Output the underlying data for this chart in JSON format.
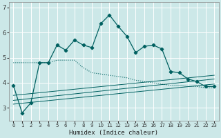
{
  "xlabel": "Humidex (Indice chaleur)",
  "bg_color": "#cce8e8",
  "grid_color": "#ffffff",
  "line_color": "#006060",
  "xlim": [
    -0.5,
    23.5
  ],
  "ylim": [
    2.5,
    7.2
  ],
  "yticks": [
    3,
    4,
    5,
    6,
    7
  ],
  "xticks": [
    0,
    1,
    2,
    3,
    4,
    5,
    6,
    7,
    8,
    9,
    10,
    11,
    12,
    13,
    14,
    15,
    16,
    17,
    18,
    19,
    20,
    21,
    22,
    23
  ],
  "main_x": [
    0,
    1,
    2,
    3,
    4,
    5,
    6,
    7,
    8,
    9,
    10,
    11,
    12,
    13,
    14,
    15,
    16,
    17,
    18,
    19,
    20,
    21,
    22,
    23
  ],
  "main_y": [
    3.9,
    2.8,
    3.2,
    4.8,
    4.8,
    5.5,
    5.3,
    5.7,
    5.5,
    5.4,
    6.35,
    6.7,
    6.25,
    5.85,
    5.2,
    5.45,
    5.5,
    5.35,
    4.45,
    4.4,
    4.15,
    4.05,
    3.85,
    3.85
  ],
  "smooth_x": [
    0,
    1,
    2,
    3,
    4,
    5,
    6,
    7,
    8,
    9,
    10,
    11,
    12,
    13,
    14,
    15,
    16,
    17,
    18,
    19,
    20,
    21,
    22,
    23
  ],
  "smooth_y": [
    4.8,
    4.8,
    4.8,
    4.8,
    4.8,
    4.9,
    4.9,
    4.9,
    4.6,
    4.4,
    4.35,
    4.3,
    4.25,
    4.2,
    4.1,
    4.05,
    4.0,
    3.95,
    3.9,
    3.9,
    3.85,
    3.85,
    3.8,
    3.8
  ],
  "line2_x": [
    0,
    23
  ],
  "line2_y": [
    3.5,
    4.3
  ],
  "line3_x": [
    0,
    23
  ],
  "line3_y": [
    3.3,
    4.15
  ],
  "line4_x": [
    0,
    23
  ],
  "line4_y": [
    3.15,
    3.95
  ]
}
